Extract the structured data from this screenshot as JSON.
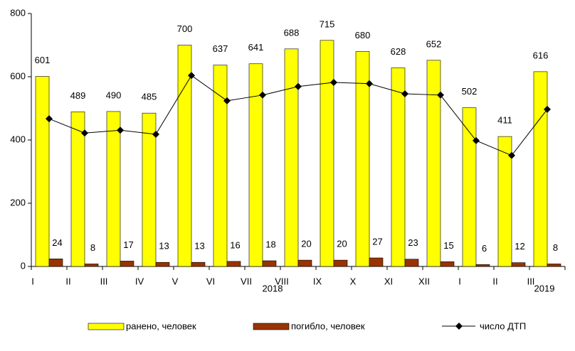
{
  "chart_data": {
    "type": "bar",
    "categories": [
      "I",
      "II",
      "III",
      "IV",
      "V",
      "VI",
      "VII",
      "VIII",
      "IX",
      "X",
      "XI",
      "XII",
      "I",
      "II",
      "III"
    ],
    "annotations": [
      "2018",
      "2019"
    ],
    "series": [
      {
        "name": "ранено, человек",
        "color": "#ffff00",
        "values": [
          601,
          489,
          490,
          485,
          700,
          637,
          641,
          688,
          715,
          680,
          628,
          652,
          502,
          411,
          616
        ]
      },
      {
        "name": "погибло, человек",
        "color": "#993300",
        "values": [
          24,
          8,
          17,
          13,
          13,
          16,
          18,
          20,
          20,
          27,
          23,
          15,
          6,
          12,
          8
        ]
      },
      {
        "name": "число ДТП",
        "type": "line",
        "color": "#000000",
        "values": [
          467,
          422,
          431,
          418,
          604,
          524,
          542,
          569,
          582,
          578,
          546,
          542,
          398,
          351,
          497
        ]
      }
    ],
    "ylim": [
      0,
      800
    ],
    "yticks": [
      0,
      200,
      400,
      600,
      800
    ],
    "legend": "bottom"
  }
}
